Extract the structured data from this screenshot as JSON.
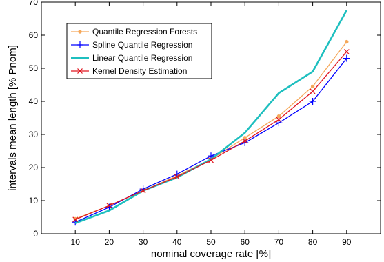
{
  "chart_data": {
    "type": "line",
    "title": "",
    "xlabel": "nominal coverage rate [%]",
    "ylabel": "intervals mean length [% Pnom]",
    "xlim": [
      0,
      100
    ],
    "ylim": [
      0,
      70
    ],
    "xticks": [
      10,
      20,
      30,
      40,
      50,
      60,
      70,
      80,
      90
    ],
    "yticks": [
      0,
      10,
      20,
      30,
      40,
      50,
      60,
      70
    ],
    "grid": false,
    "legend_position": "top-left",
    "x": [
      10,
      20,
      30,
      40,
      50,
      60,
      70,
      80,
      90
    ],
    "series": [
      {
        "name": "Quantile Regression Forests",
        "color": "#f5a85a",
        "marker": "dot",
        "values": [
          4.5,
          8.5,
          13.0,
          17.5,
          22.5,
          29.0,
          35.5,
          44.5,
          58.0
        ]
      },
      {
        "name": "Spline Quantile Regression",
        "color": "#0000ff",
        "marker": "plus",
        "values": [
          3.5,
          8.0,
          13.5,
          18.0,
          23.5,
          27.5,
          33.5,
          40.0,
          53.0
        ]
      },
      {
        "name": "Linear Quantile Regression",
        "color": "#1ebfbf",
        "marker": "none",
        "values": [
          3.2,
          7.0,
          13.0,
          17.0,
          22.5,
          30.5,
          42.5,
          49.0,
          67.5
        ]
      },
      {
        "name": "Kernel Density Estimation",
        "color": "#e0141e",
        "marker": "x",
        "values": [
          4.3,
          8.5,
          13.0,
          17.2,
          22.2,
          28.0,
          34.5,
          43.0,
          55.0
        ]
      }
    ]
  }
}
